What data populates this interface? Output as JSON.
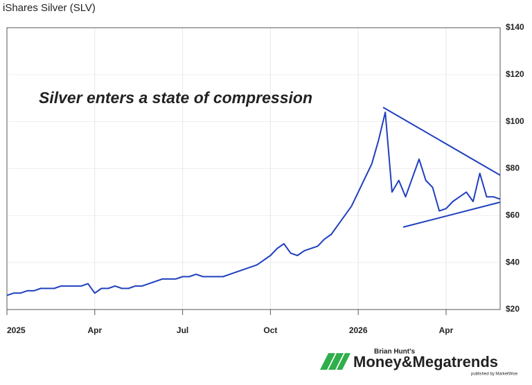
{
  "chart_data": {
    "type": "line",
    "title": "iShares Silver (SLV)",
    "annotation": "Silver enters a state of compression",
    "categories": [
      "2025",
      null,
      null,
      null,
      null,
      null,
      null,
      null,
      null,
      null,
      null,
      null,
      null,
      "Apr",
      null,
      null,
      null,
      null,
      null,
      null,
      null,
      null,
      null,
      null,
      null,
      null,
      "Jul",
      null,
      null,
      null,
      null,
      null,
      null,
      null,
      null,
      null,
      null,
      null,
      null,
      "Oct",
      null,
      null,
      null,
      null,
      null,
      null,
      null,
      null,
      null,
      null,
      null,
      null,
      "2026",
      null,
      null,
      null,
      null,
      null,
      null,
      null,
      null,
      null,
      null,
      null,
      null,
      "Apr",
      null,
      null,
      null,
      null,
      null,
      null,
      null,
      null
    ],
    "series": [
      {
        "name": "SLV",
        "color": "#1f3fbf",
        "values": [
          26,
          27,
          27,
          28,
          28,
          29,
          29,
          29,
          30,
          30,
          30,
          30,
          31,
          27,
          29,
          29,
          30,
          29,
          29,
          30,
          30,
          31,
          32,
          33,
          33,
          33,
          34,
          34,
          35,
          34,
          34,
          34,
          34,
          35,
          36,
          37,
          38,
          39,
          41,
          43,
          46,
          48,
          44,
          43,
          45,
          46,
          47,
          50,
          52,
          56,
          60,
          64,
          70,
          76,
          82,
          92,
          104,
          70,
          75,
          68,
          76,
          84,
          75,
          72,
          62,
          63,
          66,
          68,
          70,
          66,
          78,
          68,
          68,
          67
        ]
      }
    ],
    "ylim": [
      20,
      140
    ],
    "yticks": [
      {
        "value": 20,
        "label": "$20"
      },
      {
        "value": 40,
        "label": "$40"
      },
      {
        "value": 60,
        "label": "$60"
      },
      {
        "value": 80,
        "label": "$80"
      },
      {
        "value": 100,
        "label": "$100"
      },
      {
        "value": 120,
        "label": "$120"
      },
      {
        "value": 140,
        "label": "$140"
      }
    ],
    "grid": true
  },
  "logo": {
    "byline": "Brian Hunt's",
    "brand": "Money&Megatrends",
    "publisher": "published by MarketWise"
  }
}
